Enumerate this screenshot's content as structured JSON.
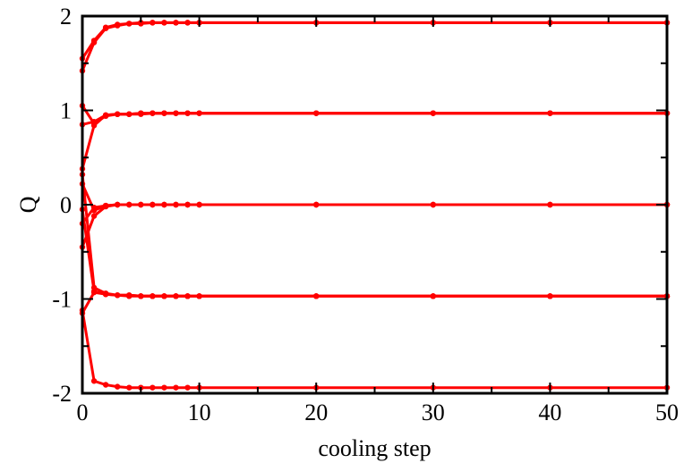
{
  "chart_data": {
    "type": "line",
    "title": "",
    "xlabel": "cooling step",
    "ylabel": "Q",
    "xlim": [
      0,
      50
    ],
    "ylim": [
      -2,
      2
    ],
    "xticks": [
      0,
      10,
      20,
      30,
      40,
      50
    ],
    "yticks": [
      -2,
      -1,
      0,
      1,
      2
    ],
    "grid": false,
    "legend": "none",
    "colors": {
      "series": "#ff0000",
      "axes": "#000000"
    },
    "x": [
      0,
      1,
      2,
      3,
      4,
      5,
      6,
      7,
      8,
      9,
      10,
      20,
      30,
      40,
      50
    ],
    "series": [
      {
        "values": [
          1.42,
          1.72,
          1.87,
          1.9,
          1.92,
          1.92,
          1.93,
          1.93,
          1.93,
          1.93,
          1.93,
          1.93,
          1.93,
          1.93,
          1.93
        ]
      },
      {
        "values": [
          1.55,
          1.74,
          1.88,
          1.91,
          1.92,
          1.93,
          1.93,
          1.93,
          1.93,
          1.93,
          1.93,
          1.93,
          1.93,
          1.93,
          1.93
        ]
      },
      {
        "values": [
          1.05,
          0.86,
          0.94,
          0.96,
          0.96,
          0.96,
          0.97,
          0.97,
          0.97,
          0.97,
          0.97,
          0.97,
          0.97,
          0.97,
          0.97
        ]
      },
      {
        "values": [
          0.85,
          0.88,
          0.95,
          0.96,
          0.96,
          0.97,
          0.97,
          0.97,
          0.97,
          0.97,
          0.97,
          0.97,
          0.97,
          0.97,
          0.97
        ]
      },
      {
        "values": [
          0.38,
          0.84,
          0.95,
          0.96,
          0.96,
          0.97,
          0.97,
          0.97,
          0.97,
          0.97,
          0.97,
          0.97,
          0.97,
          0.97,
          0.97
        ]
      },
      {
        "values": [
          0.22,
          -0.06,
          -0.01,
          0.0,
          0.0,
          0.0,
          0.0,
          0.0,
          0.0,
          0.0,
          0.0,
          0.0,
          0.0,
          0.0,
          0.0
        ]
      },
      {
        "values": [
          -0.2,
          -0.03,
          -0.01,
          0.0,
          0.0,
          0.0,
          0.0,
          0.0,
          0.0,
          0.0,
          0.0,
          0.0,
          0.0,
          0.0,
          0.0
        ]
      },
      {
        "values": [
          -0.45,
          -0.12,
          -0.02,
          0.0,
          0.0,
          0.0,
          0.0,
          0.0,
          0.0,
          0.0,
          0.0,
          0.0,
          0.0,
          0.0,
          0.0
        ]
      },
      {
        "values": [
          -0.05,
          -0.92,
          -0.95,
          -0.96,
          -0.96,
          -0.97,
          -0.97,
          -0.97,
          -0.97,
          -0.97,
          -0.97,
          -0.97,
          -0.97,
          -0.97,
          -0.97
        ]
      },
      {
        "values": [
          0.32,
          -0.88,
          -0.94,
          -0.96,
          -0.96,
          -0.97,
          -0.97,
          -0.97,
          -0.97,
          -0.97,
          -0.97,
          -0.97,
          -0.97,
          -0.97,
          -0.97
        ]
      },
      {
        "values": [
          -1.15,
          -0.93,
          -0.95,
          -0.96,
          -0.97,
          -0.97,
          -0.97,
          -0.97,
          -0.97,
          -0.97,
          -0.97,
          -0.97,
          -0.97,
          -0.97,
          -0.97
        ]
      },
      {
        "values": [
          -1.12,
          -1.87,
          -1.91,
          -1.93,
          -1.94,
          -1.94,
          -1.94,
          -1.94,
          -1.94,
          -1.94,
          -1.94,
          -1.94,
          -1.94,
          -1.94,
          -1.94
        ]
      }
    ]
  }
}
